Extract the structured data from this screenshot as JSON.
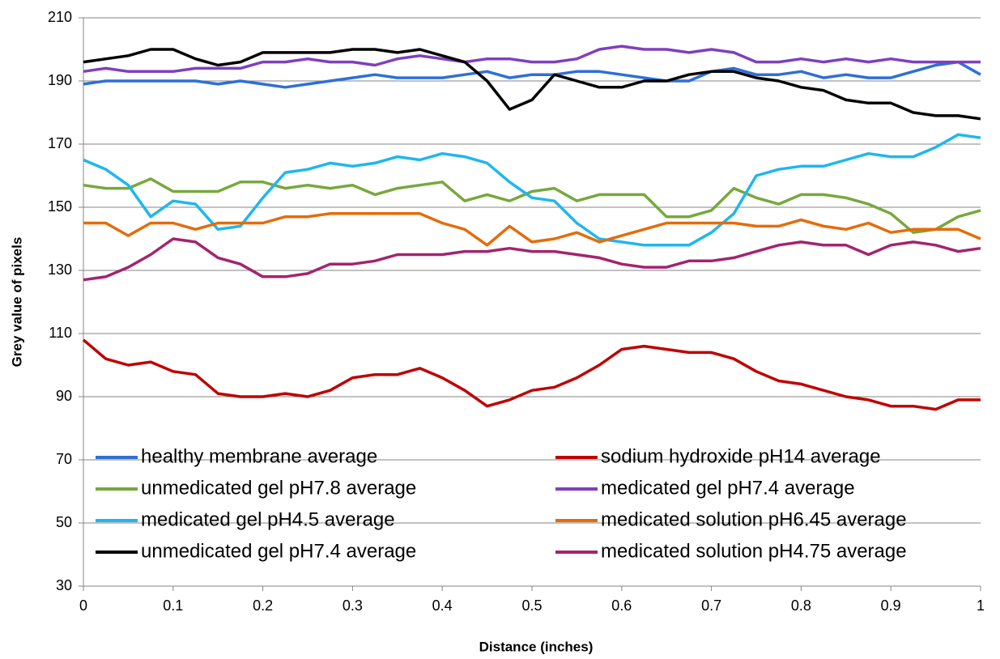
{
  "chart_data": {
    "type": "line",
    "xlabel": "Distance (inches)",
    "ylabel": "Grey value of pixels",
    "x": [
      0,
      0.025,
      0.05,
      0.075,
      0.1,
      0.125,
      0.15,
      0.175,
      0.2,
      0.225,
      0.25,
      0.275,
      0.3,
      0.325,
      0.35,
      0.375,
      0.4,
      0.425,
      0.45,
      0.475,
      0.5,
      0.525,
      0.55,
      0.575,
      0.6,
      0.625,
      0.65,
      0.675,
      0.7,
      0.725,
      0.75,
      0.775,
      0.8,
      0.825,
      0.85,
      0.875,
      0.9,
      0.925,
      0.95,
      0.975,
      1
    ],
    "xlim": [
      0,
      1
    ],
    "xticks": [
      0,
      0.1,
      0.2,
      0.3,
      0.4,
      0.5,
      0.6,
      0.7,
      0.8,
      0.9,
      1
    ],
    "ylim": [
      30,
      210
    ],
    "yticks": [
      30,
      50,
      70,
      90,
      110,
      130,
      150,
      170,
      190,
      210
    ],
    "grid": true,
    "legend": "bottom",
    "series": [
      {
        "name": "healthy membrane average",
        "color": "#2e6fd8",
        "values": [
          189,
          190,
          190,
          190,
          190,
          190,
          189,
          190,
          189,
          188,
          189,
          190,
          191,
          192,
          191,
          191,
          191,
          192,
          193,
          191,
          192,
          192,
          193,
          193,
          192,
          191,
          190,
          190,
          193,
          194,
          192,
          192,
          193,
          191,
          192,
          191,
          191,
          193,
          195,
          196,
          192
        ]
      },
      {
        "name": "sodium hydroxide pH14 average",
        "color": "#c00000",
        "values": [
          108,
          102,
          100,
          101,
          98,
          97,
          91,
          90,
          90,
          91,
          90,
          92,
          96,
          97,
          97,
          99,
          96,
          92,
          87,
          89,
          92,
          93,
          96,
          100,
          105,
          106,
          105,
          104,
          104,
          102,
          98,
          95,
          94,
          92,
          90,
          89,
          87,
          87,
          86,
          89,
          89
        ]
      },
      {
        "name": "unmedicated gel pH7.8 average",
        "color": "#77a83c",
        "values": [
          157,
          156,
          156,
          159,
          155,
          155,
          155,
          158,
          158,
          156,
          157,
          156,
          157,
          154,
          156,
          157,
          158,
          152,
          154,
          152,
          155,
          156,
          152,
          154,
          154,
          154,
          147,
          147,
          149,
          156,
          153,
          151,
          154,
          154,
          153,
          151,
          148,
          142,
          143,
          147,
          149
        ]
      },
      {
        "name": "medicated gel pH7.4 average",
        "color": "#7f3fbf",
        "values": [
          193,
          194,
          193,
          193,
          193,
          194,
          194,
          194,
          196,
          196,
          197,
          196,
          196,
          195,
          197,
          198,
          197,
          196,
          197,
          197,
          196,
          196,
          197,
          200,
          201,
          200,
          200,
          199,
          200,
          199,
          196,
          196,
          197,
          196,
          197,
          196,
          197,
          196,
          196,
          196,
          196
        ]
      },
      {
        "name": "medicated gel pH4.5 average",
        "color": "#1fb6f0",
        "values": [
          165,
          162,
          157,
          147,
          152,
          151,
          143,
          144,
          153,
          161,
          162,
          164,
          163,
          164,
          166,
          165,
          167,
          166,
          164,
          158,
          153,
          152,
          145,
          140,
          139,
          138,
          138,
          138,
          142,
          148,
          160,
          162,
          163,
          163,
          165,
          167,
          166,
          166,
          169,
          173,
          172
        ]
      },
      {
        "name": "medicated solution pH6.45 average",
        "color": "#e46c0a",
        "values": [
          145,
          145,
          141,
          145,
          145,
          143,
          145,
          145,
          145,
          147,
          147,
          148,
          148,
          148,
          148,
          148,
          145,
          143,
          138,
          144,
          139,
          140,
          142,
          139,
          141,
          143,
          145,
          145,
          145,
          145,
          144,
          144,
          146,
          144,
          143,
          145,
          142,
          143,
          143,
          143,
          140
        ]
      },
      {
        "name": "unmedicated gel pH7.4 average",
        "color": "#000000",
        "values": [
          196,
          197,
          198,
          200,
          200,
          197,
          195,
          196,
          199,
          199,
          199,
          199,
          200,
          200,
          199,
          200,
          198,
          196,
          190,
          181,
          184,
          192,
          190,
          188,
          188,
          190,
          190,
          192,
          193,
          193,
          191,
          190,
          188,
          187,
          184,
          183,
          183,
          180,
          179,
          179,
          178
        ]
      },
      {
        "name": "medicated solution pH4.75 average",
        "color": "#a3246e",
        "values": [
          127,
          128,
          131,
          135,
          140,
          139,
          134,
          132,
          128,
          128,
          129,
          132,
          132,
          133,
          135,
          135,
          135,
          136,
          136,
          137,
          136,
          136,
          135,
          134,
          132,
          131,
          131,
          133,
          133,
          134,
          136,
          138,
          139,
          138,
          138,
          135,
          138,
          139,
          138,
          136,
          137
        ]
      }
    ]
  }
}
